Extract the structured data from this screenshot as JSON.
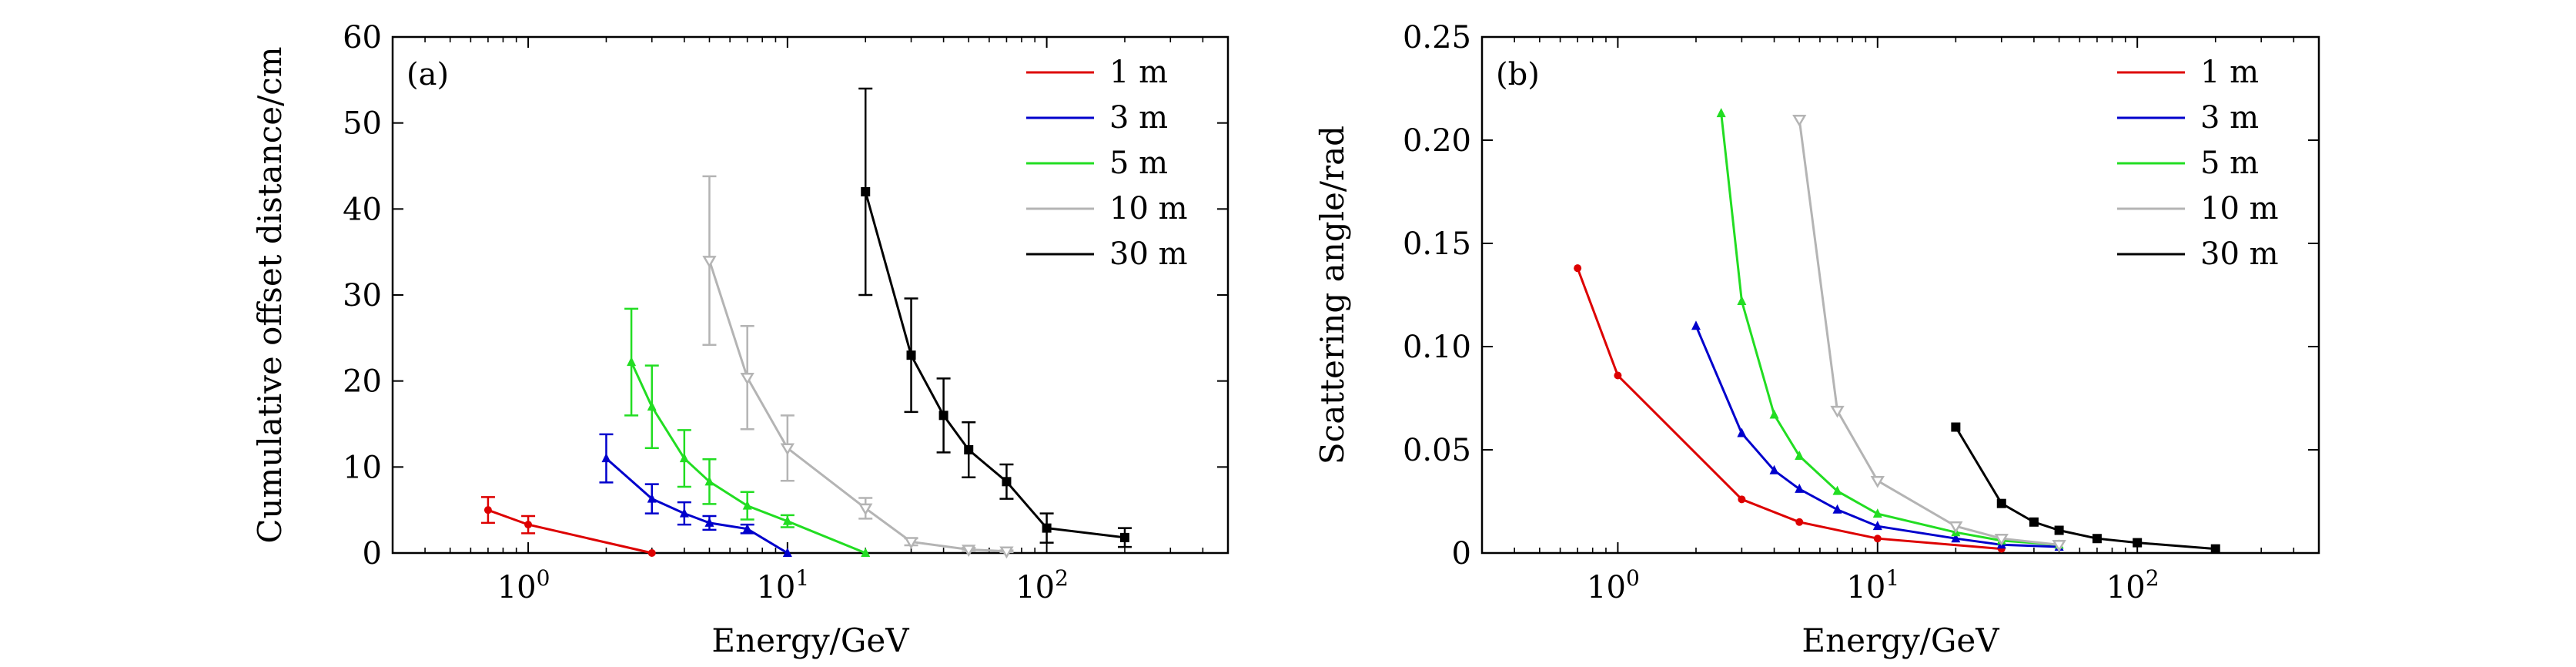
{
  "figure": {
    "charts": 2
  },
  "chart_data": [
    {
      "type": "line",
      "panel_label": "(a)",
      "xlabel": "Energy/GeV",
      "ylabel": "Cumulative offset distance/cm",
      "xscale": "log",
      "xlim": [
        0.3,
        500
      ],
      "ylim": [
        0,
        60
      ],
      "yticks": [
        0,
        10,
        20,
        30,
        40,
        50,
        60
      ],
      "xticks": [
        1,
        10,
        100
      ],
      "xtick_labels": [
        "10^0",
        "10^1",
        "10^2"
      ],
      "legend": {
        "placement": "top-right",
        "entries": [
          "1 m",
          "3 m",
          "5 m",
          "10 m",
          "30 m"
        ]
      },
      "series": [
        {
          "name": "1 m",
          "color": "#dd0000",
          "marker": "circle",
          "x": [
            0.7,
            1,
            3
          ],
          "y": [
            5.0,
            3.3,
            0.0
          ],
          "err": [
            1.5,
            1.0,
            0
          ]
        },
        {
          "name": "3 m",
          "color": "#0000cc",
          "marker": "triangle-up",
          "x": [
            2,
            3,
            4,
            5,
            7,
            10
          ],
          "y": [
            11.0,
            6.3,
            4.6,
            3.5,
            2.8,
            0.0
          ],
          "err": [
            2.8,
            1.7,
            1.3,
            0.8,
            0.5,
            0
          ]
        },
        {
          "name": "5 m",
          "color": "#22dd22",
          "marker": "triangle-up",
          "x": [
            2.5,
            3,
            4,
            5,
            7,
            10,
            20
          ],
          "y": [
            22.2,
            17.0,
            11.0,
            8.3,
            5.5,
            3.7,
            0.0
          ],
          "err": [
            6.2,
            4.8,
            3.3,
            2.6,
            1.6,
            0.7,
            0
          ]
        },
        {
          "name": "10 m",
          "color": "#b4b4b4",
          "marker": "triangle-down",
          "x": [
            5,
            7,
            10,
            20,
            30,
            50,
            70
          ],
          "y": [
            34.0,
            20.4,
            12.2,
            5.2,
            1.3,
            0.4,
            0.2
          ],
          "err": [
            9.8,
            6.0,
            3.8,
            1.2,
            0.4,
            0.2,
            0.1
          ]
        },
        {
          "name": "30 m",
          "color": "#000000",
          "marker": "square",
          "x": [
            20,
            30,
            40,
            50,
            70,
            100,
            200
          ],
          "y": [
            42.0,
            23.0,
            16.0,
            12.0,
            8.3,
            2.9,
            1.8
          ],
          "err": [
            12.0,
            6.6,
            4.3,
            3.2,
            2.0,
            1.7,
            1.1
          ]
        }
      ]
    },
    {
      "type": "line",
      "panel_label": "(b)",
      "xlabel": "Energy/GeV",
      "ylabel": "Scattering angle/rad",
      "xscale": "log",
      "xlim": [
        0.3,
        500
      ],
      "ylim": [
        0,
        0.25
      ],
      "yticks": [
        0,
        0.05,
        0.1,
        0.15,
        0.2,
        0.25
      ],
      "ytick_labels": [
        "0",
        "0.05",
        "0.10",
        "0.15",
        "0.20",
        "0.25"
      ],
      "xticks": [
        1,
        10,
        100
      ],
      "xtick_labels": [
        "10^0",
        "10^1",
        "10^2"
      ],
      "legend": {
        "placement": "top-right",
        "entries": [
          "1 m",
          "3 m",
          "5 m",
          "10 m",
          "30 m"
        ]
      },
      "series": [
        {
          "name": "1 m",
          "color": "#dd0000",
          "marker": "circle",
          "x": [
            0.7,
            1,
            3,
            5,
            10,
            30
          ],
          "y": [
            0.138,
            0.086,
            0.026,
            0.015,
            0.007,
            0.002
          ]
        },
        {
          "name": "3 m",
          "color": "#0000cc",
          "marker": "triangle-up",
          "x": [
            2,
            3,
            4,
            5,
            7,
            10,
            20,
            30,
            50
          ],
          "y": [
            0.11,
            0.058,
            0.04,
            0.031,
            0.021,
            0.013,
            0.007,
            0.004,
            0.003
          ]
        },
        {
          "name": "5 m",
          "color": "#22dd22",
          "marker": "triangle-up",
          "x": [
            2.5,
            3,
            4,
            5,
            7,
            10,
            20,
            30,
            50
          ],
          "y": [
            0.213,
            0.122,
            0.067,
            0.047,
            0.03,
            0.019,
            0.01,
            0.006,
            0.004
          ]
        },
        {
          "name": "10 m",
          "color": "#b4b4b4",
          "marker": "triangle-down",
          "x": [
            5,
            7,
            10,
            20,
            30,
            50
          ],
          "y": [
            0.21,
            0.069,
            0.035,
            0.013,
            0.007,
            0.004
          ]
        },
        {
          "name": "30 m",
          "color": "#000000",
          "marker": "square",
          "x": [
            20,
            30,
            40,
            50,
            70,
            100,
            200
          ],
          "y": [
            0.061,
            0.024,
            0.015,
            0.011,
            0.007,
            0.005,
            0.002
          ]
        }
      ]
    }
  ]
}
